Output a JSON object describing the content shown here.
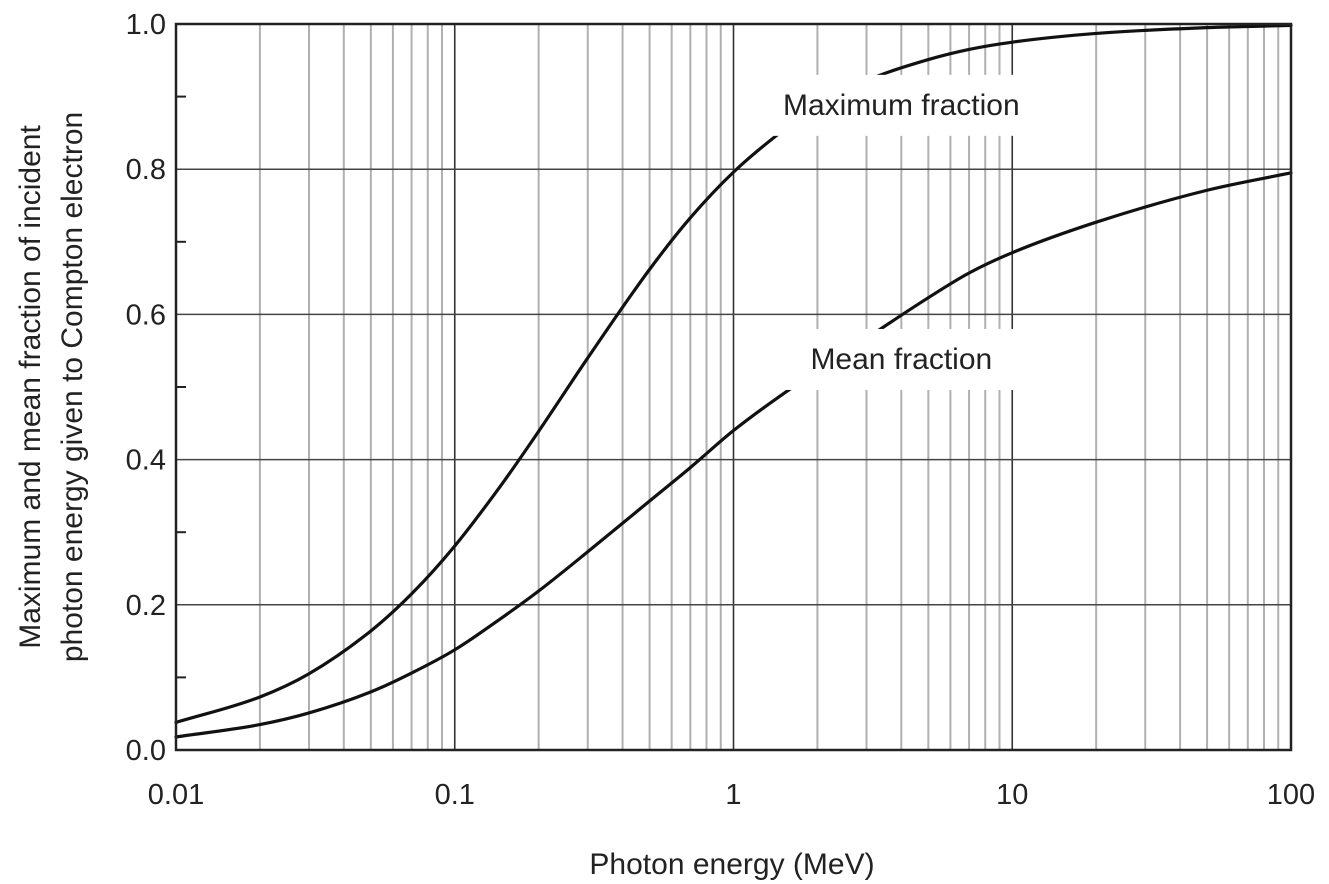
{
  "chart_data": {
    "type": "line",
    "title": "",
    "xlabel": "Photon energy (MeV)",
    "ylabel": "Maximum and mean fraction of incident photon energy given to Compton electron",
    "ylabel_lines": [
      "Maximum and mean fraction of incident",
      "photon energy given to Compton electron"
    ],
    "x_scale": "log",
    "xlim": [
      0.01,
      100
    ],
    "ylim": [
      0,
      1
    ],
    "grid": true,
    "x_ticks": [
      0.01,
      0.1,
      1,
      10,
      100
    ],
    "x_tick_labels": [
      "0.01",
      "0.1",
      "1",
      "10",
      "100"
    ],
    "y_ticks": [
      0,
      0.2,
      0.4,
      0.6,
      0.8,
      1.0
    ],
    "y_tick_labels": [
      "0.0",
      "0.2",
      "0.4",
      "0.6",
      "0.8",
      "1.0"
    ],
    "series": [
      {
        "label": "Maximum fraction",
        "x": [
          0.01,
          0.02,
          0.03,
          0.05,
          0.07,
          0.1,
          0.15,
          0.2,
          0.3,
          0.5,
          0.7,
          1,
          1.5,
          2,
          3,
          5,
          7,
          10,
          20,
          50,
          100
        ],
        "y": [
          0.038,
          0.073,
          0.105,
          0.164,
          0.215,
          0.281,
          0.37,
          0.439,
          0.54,
          0.662,
          0.733,
          0.796,
          0.853,
          0.887,
          0.922,
          0.951,
          0.965,
          0.975,
          0.987,
          0.995,
          0.998
        ],
        "color": "#111111"
      },
      {
        "label": "Mean fraction",
        "x": [
          0.01,
          0.02,
          0.03,
          0.05,
          0.07,
          0.1,
          0.15,
          0.2,
          0.3,
          0.5,
          0.7,
          1,
          1.5,
          2,
          3,
          5,
          7,
          10,
          20,
          50,
          100
        ],
        "y": [
          0.018,
          0.035,
          0.051,
          0.08,
          0.106,
          0.138,
          0.184,
          0.219,
          0.273,
          0.343,
          0.389,
          0.44,
          0.49,
          0.522,
          0.567,
          0.623,
          0.657,
          0.685,
          0.727,
          0.771,
          0.795
        ],
        "color": "#111111"
      }
    ],
    "annotations": [
      {
        "text": "Maximum fraction",
        "anchor_x": 4,
        "anchor_y": 0.89
      },
      {
        "text": "Mean fraction",
        "anchor_x": 4,
        "anchor_y": 0.54
      }
    ]
  }
}
